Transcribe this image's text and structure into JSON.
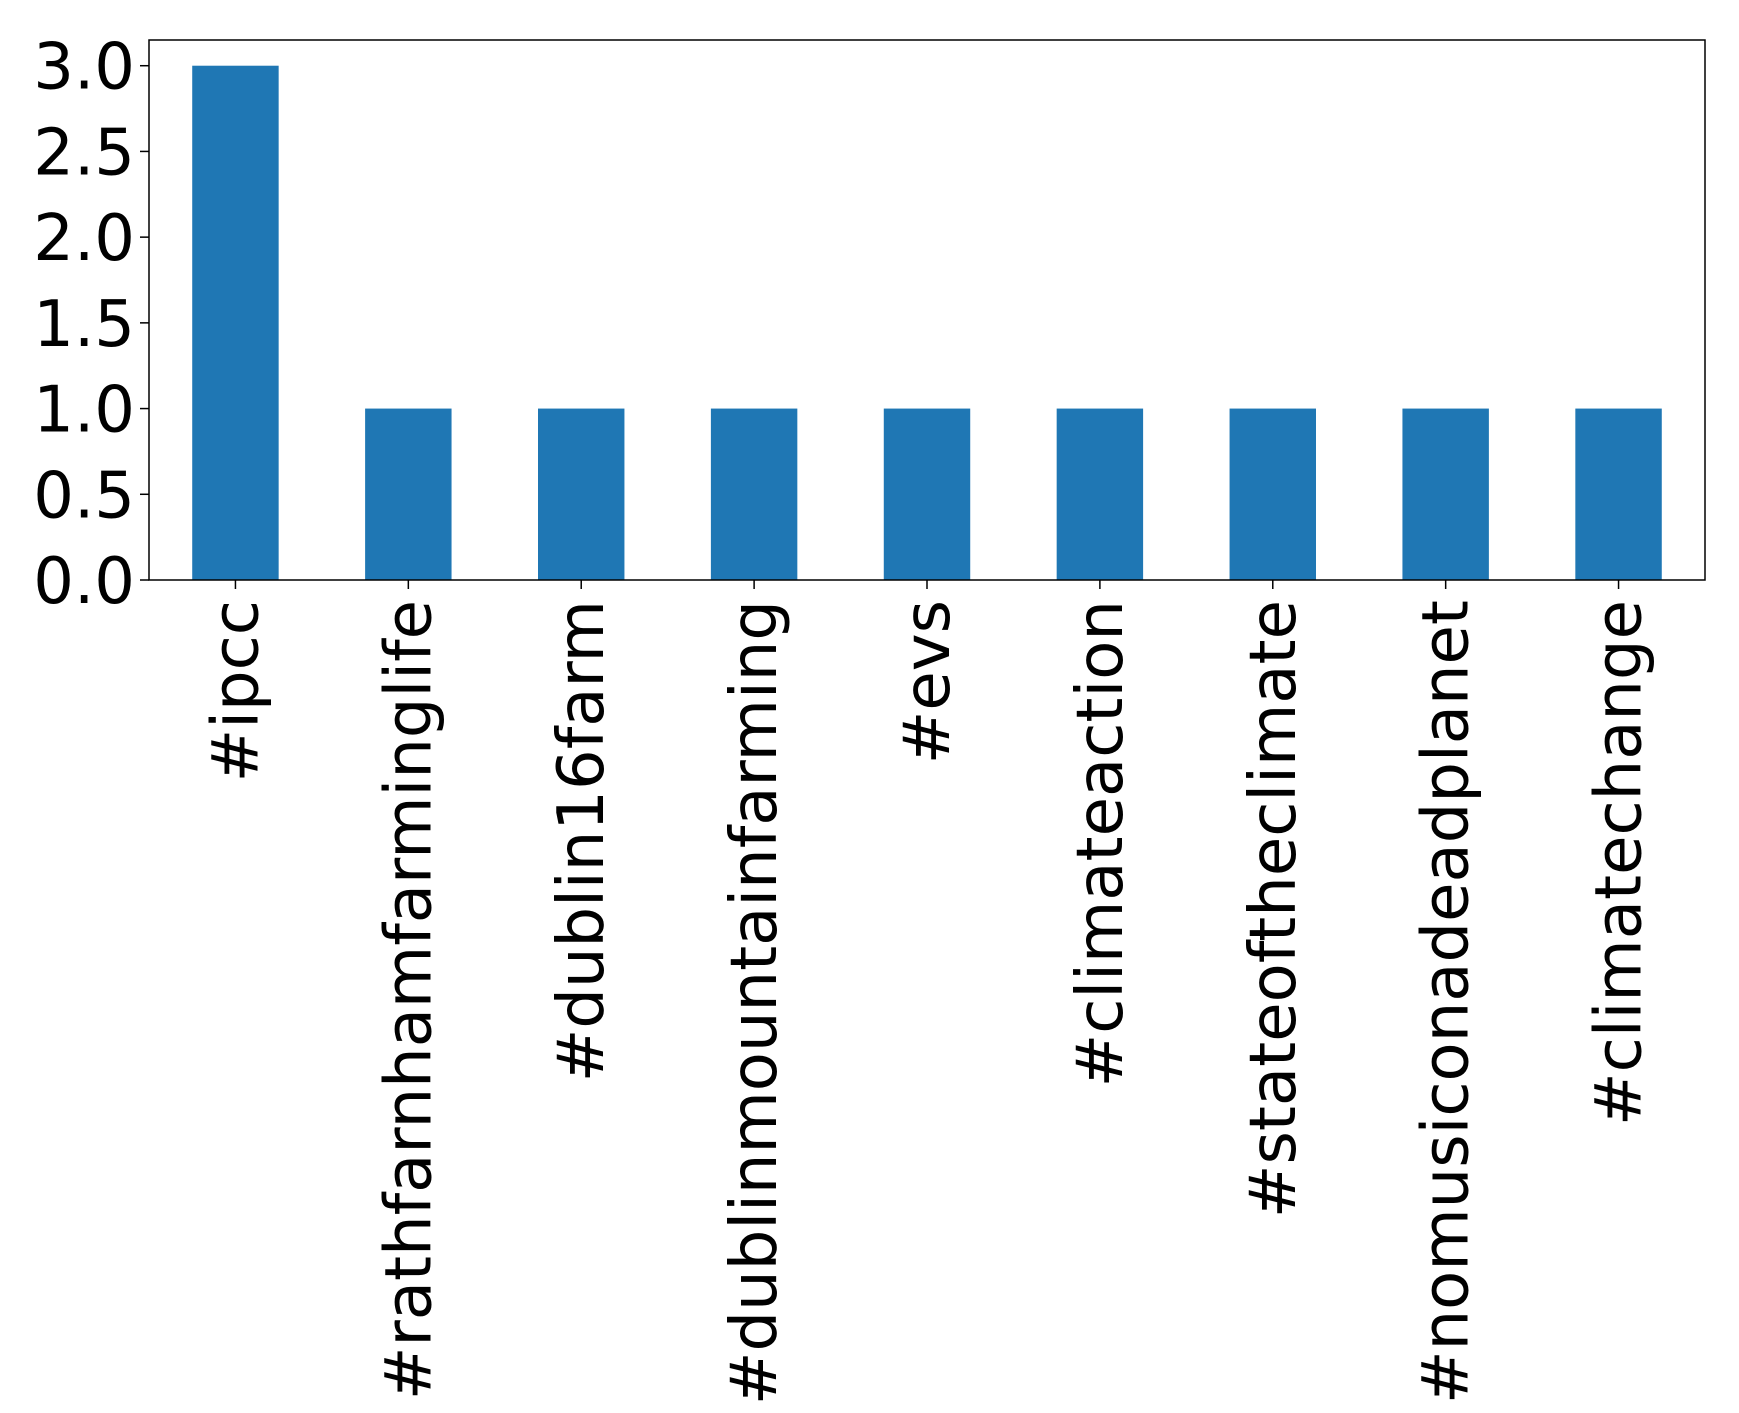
{
  "chart_data": {
    "type": "bar",
    "title": "",
    "xlabel": "",
    "ylabel": "",
    "categories": [
      "#ipcc",
      "#rathfarnhamfarminglife",
      "#dublin16farm",
      "#dublinmountainfarming",
      "#evs",
      "#climateaction",
      "#stateoftheclimate",
      "#nomusiconadeadplanet",
      "#climatechange"
    ],
    "values": [
      3,
      1,
      1,
      1,
      1,
      1,
      1,
      1,
      1
    ],
    "ylim": [
      0,
      3.15
    ],
    "yticks": [
      "0.0",
      "0.5",
      "1.0",
      "1.5",
      "2.0",
      "2.5",
      "3.0"
    ],
    "grid": false,
    "bar_color": "#1f77b4"
  }
}
